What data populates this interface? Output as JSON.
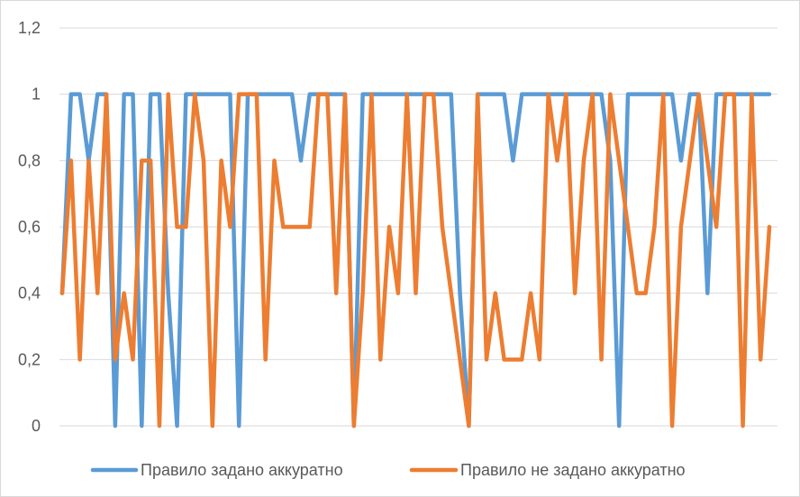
{
  "chart_data": {
    "type": "line",
    "title": "",
    "xlabel": "",
    "ylabel": "",
    "ylim": [
      0,
      1.2
    ],
    "y_ticks": [
      "0",
      "0,2",
      "0,4",
      "0,6",
      "0,8",
      "1",
      "1,2"
    ],
    "y_tick_values": [
      0,
      0.2,
      0.4,
      0.6,
      0.8,
      1,
      1.2
    ],
    "grid": "horizontal",
    "legend_position": "bottom",
    "series": [
      {
        "name": "Правило задано аккуратно",
        "color": "#5b9bd5",
        "values": [
          0.4,
          1,
          1,
          0.8,
          1,
          1,
          0,
          1,
          1,
          0,
          1,
          1,
          0.4,
          0,
          1,
          1,
          1,
          1,
          1,
          1,
          0,
          1,
          1,
          1,
          1,
          1,
          1,
          0.8,
          1,
          1,
          1,
          1,
          1,
          0,
          1,
          1,
          1,
          1,
          1,
          1,
          1,
          1,
          1,
          1,
          1,
          0.4,
          0,
          1,
          1,
          1,
          1,
          0.8,
          1,
          1,
          1,
          1,
          1,
          1,
          1,
          1,
          1,
          1,
          0.8,
          0,
          1,
          1,
          1,
          1,
          1,
          1,
          0.8,
          1,
          1,
          0.4,
          1,
          1,
          1,
          1,
          1,
          1,
          1
        ]
      },
      {
        "name": "Правило не задано аккуратно",
        "color": "#ed7d31",
        "values": [
          0.4,
          0.8,
          0.2,
          0.8,
          0.4,
          1,
          0.2,
          0.4,
          0.2,
          0.8,
          0.8,
          0,
          1,
          0.6,
          0.6,
          1,
          0.8,
          0,
          0.8,
          0.6,
          1,
          1,
          1,
          0.2,
          0.8,
          0.6,
          0.6,
          0.6,
          0.6,
          1,
          1,
          0.4,
          1,
          0,
          0.4,
          1,
          0.2,
          0.6,
          0.4,
          1,
          0.4,
          1,
          1,
          0.6,
          0.4,
          0.2,
          0,
          1,
          0.2,
          0.4,
          0.2,
          0.2,
          0.2,
          0.4,
          0.2,
          1,
          0.8,
          1,
          0.4,
          0.8,
          1,
          0.2,
          1,
          0.8,
          0.6,
          0.4,
          0.4,
          0.6,
          1,
          0,
          0.6,
          0.8,
          1,
          0.8,
          0.6,
          1,
          1,
          0,
          1,
          0.2,
          0.6
        ]
      }
    ]
  }
}
